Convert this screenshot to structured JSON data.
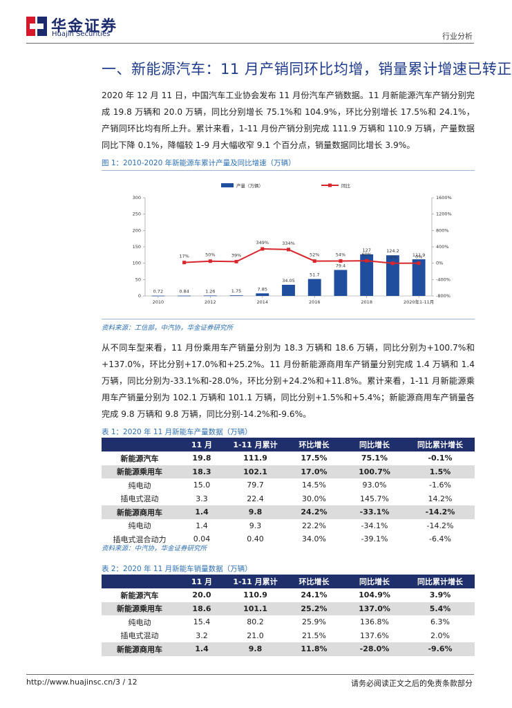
{
  "header": {
    "brand_cn": "华金证券",
    "brand_en": "Huajin Securities",
    "doc_type": "行业分析"
  },
  "heading": "一、新能源汽车：11 月产销同环比均增，销量累计增速已转正",
  "para1": "2020 年 12 月 11 日，中国汽车工业协会发布 11 月份汽车产销数据。11 月新能源汽车产销分别完成 19.8 万辆和 20.0 万辆，同比分别增长 75.1%和 104.9%，环比分别增长 17.5%和 24.1%，产销同环比均有所上升。累计来看，1-11 月份产销分别完成 111.9 万辆和 110.9 万辆，产量数据同比下降 0.1%，降幅较 1-9 月大幅收窄 9.1 个百分点，销量数据同比增长 3.9%。",
  "figure1": {
    "title": "图 1：2010-2020 年新能源车累计产量及同比增速（万辆）",
    "source": "资料来源：工信部，中汽协，华金证券研究所"
  },
  "chart_data": {
    "type": "bar+line",
    "categories": [
      "2010",
      "2011",
      "2012",
      "2013",
      "2014",
      "2015",
      "2016",
      "2017",
      "2018",
      "2019",
      "2020年1-11月"
    ],
    "x_tick_labels": [
      "2010",
      "2012",
      "2014",
      "2016",
      "2018",
      "2020年1-11月"
    ],
    "series": [
      {
        "name": "产量（万辆）",
        "type": "bar",
        "axis": "left",
        "values": [
          0.72,
          0.84,
          1.26,
          1.75,
          7.85,
          34.05,
          51.7,
          79.4,
          127,
          124.2,
          111.9
        ],
        "labels": [
          "0.72",
          "0.84",
          "1.26",
          "1.75",
          "7.85",
          "34.05",
          "51.7",
          "79.4",
          "127",
          "124.2",
          "111.9"
        ]
      },
      {
        "name": "同比",
        "type": "line",
        "axis": "right",
        "values": [
          null,
          17,
          50,
          39,
          349,
          334,
          52,
          54,
          60,
          -2,
          -0.1
        ],
        "labels": [
          "",
          "17%",
          "50%",
          "39%",
          "349%",
          "334%",
          "52%",
          "54%",
          "60%",
          "-2%",
          "0%"
        ]
      }
    ],
    "left_ticks": [
      "0",
      "50",
      "100",
      "150",
      "200",
      "250",
      "300"
    ],
    "left_ylim": [
      0,
      300
    ],
    "right_ticks": [
      "-800%",
      "-400%",
      "0%",
      "400%",
      "800%",
      "1200%",
      "1600%"
    ],
    "right_ylim": [
      -800,
      1600
    ],
    "legend_position": "top",
    "colors": {
      "bar": "#1f4e9e",
      "line": "#d9262c"
    }
  },
  "para2": "从不同车型来看，11 月份乘用车产销量分别为 18.3 万辆和 18.6 万辆，同比分别为+100.7%和+137.0%，环比分别+17.0%和+25.2%。11 月份新能源商用车产销量分别完成 1.4 万辆和 1.4 万辆，同比分别为-33.1%和-28.0%，环比分别+24.2%和+11.8%。累计来看，1-11 月新能源乘用车产销量分别为 102.1 万辆和 101.1 万辆，同比分别+1.5%和+5.4%；新能源商用车产销量各完成 9.8 万辆和 9.8 万辆，同比分别-14.2%和-9.6%。",
  "table1": {
    "title": "表 1：2020 年 11 月新能车产量数据（万辆）",
    "headers": [
      "",
      "11 月",
      "1-11 月累计",
      "环比增长",
      "同比增长",
      "同比累计增长"
    ],
    "rows": [
      {
        "style": "bw",
        "cells": [
          "新能源汽车",
          "19.8",
          "111.9",
          "17.5%",
          "75.1%",
          "-0.1%"
        ]
      },
      {
        "style": "b",
        "cells": [
          "新能源乘用车",
          "18.3",
          "102.1",
          "17.0%",
          "100.7%",
          "1.5%"
        ]
      },
      {
        "style": "n",
        "cells": [
          "纯电动",
          "15.0",
          "79.7",
          "14.5%",
          "93.0%",
          "-1.6%"
        ]
      },
      {
        "style": "n",
        "cells": [
          "插电式混动",
          "3.3",
          "22.4",
          "30.0%",
          "145.7%",
          "14.2%"
        ]
      },
      {
        "style": "b",
        "cells": [
          "新能源商用车",
          "1.4",
          "9.8",
          "24.2%",
          "-33.1%",
          "-14.2%"
        ]
      },
      {
        "style": "n",
        "cells": [
          "纯电动",
          "1.4",
          "9.3",
          "22.2%",
          "-34.1%",
          "-14.2%"
        ]
      },
      {
        "style": "n",
        "cells": [
          "插电式混合动力",
          "0.04",
          "0.40",
          "34.0%",
          "-39.1%",
          "-6.4%"
        ]
      }
    ],
    "source": "资料来源：中汽协，华金证券研究所"
  },
  "table2": {
    "title": "表 2：2020 年 11 月新能车销量数据（万辆）",
    "headers": [
      "",
      "11 月",
      "1-11 月累计",
      "环比增长",
      "同比增长",
      "同比累计增长"
    ],
    "rows": [
      {
        "style": "bw",
        "cells": [
          "新能源汽车",
          "20.0",
          "110.9",
          "24.1%",
          "104.9%",
          "3.9%"
        ]
      },
      {
        "style": "b",
        "cells": [
          "新能源乘用车",
          "18.6",
          "101.1",
          "25.2%",
          "137.0%",
          "5.4%"
        ]
      },
      {
        "style": "n",
        "cells": [
          "纯电动",
          "15.4",
          "80.2",
          "25.9%",
          "136.8%",
          "6.3%"
        ]
      },
      {
        "style": "n",
        "cells": [
          "插电式混动",
          "3.2",
          "21.0",
          "21.5%",
          "137.6%",
          "2.0%"
        ]
      },
      {
        "style": "b",
        "cells": [
          "新能源商用车",
          "1.4",
          "9.8",
          "11.8%",
          "-28.0%",
          "-9.6%"
        ]
      }
    ]
  },
  "footer": {
    "url": "http://www.huajinsc.cn/3 / 12",
    "disclaimer": "请务必阅读正文之后的免责条款部分"
  },
  "colors": {
    "brand_red": "#d7182a",
    "brand_navy": "#1a2a6c",
    "header_blue": "#1f2f6b",
    "title_blue": "#1f3b8c"
  }
}
